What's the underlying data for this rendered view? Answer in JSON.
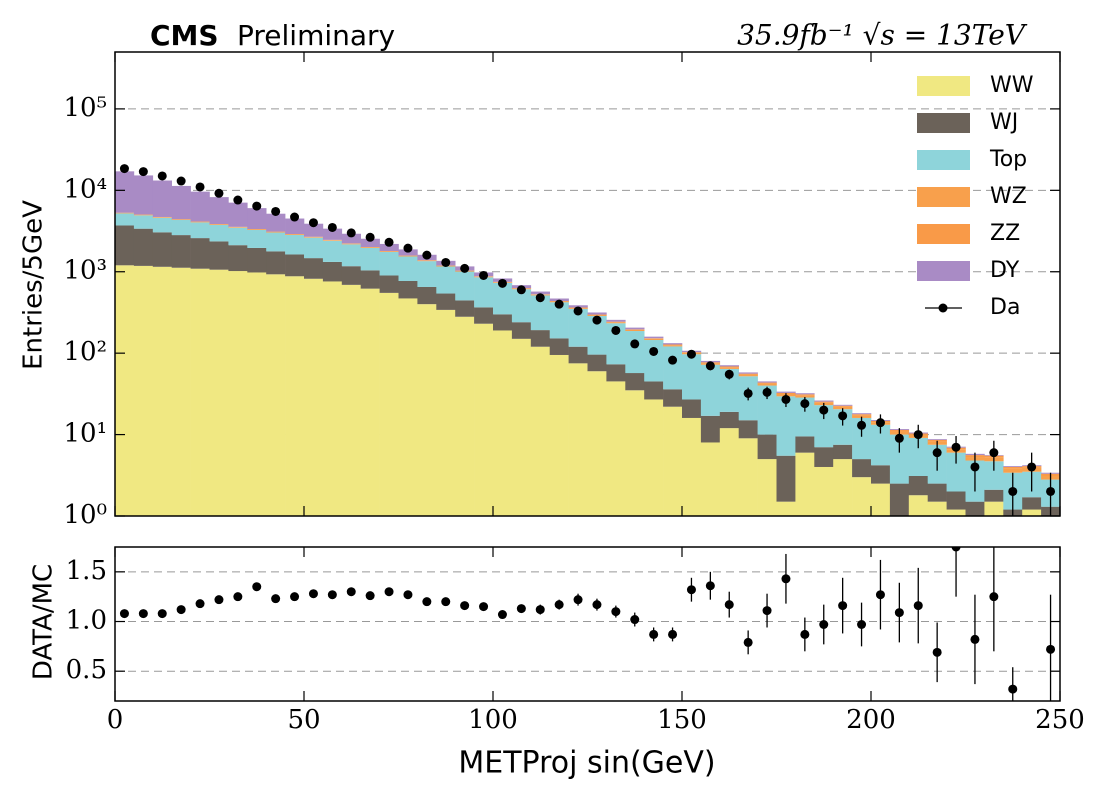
{
  "chart_data": [
    {
      "type": "stacked_histogram",
      "title": "CMS",
      "subtitle": "Preliminary",
      "annotation": "35.9fb⁻¹ √s = 13TeV",
      "ylabel": "Entries/5GeV",
      "log_scale": true,
      "grid": true,
      "legend": "upper right",
      "bins": [
        0,
        5,
        10,
        15,
        20,
        25,
        30,
        35,
        40,
        45,
        50,
        55,
        60,
        65,
        70,
        75,
        80,
        85,
        90,
        95,
        100,
        105,
        110,
        115,
        120,
        125,
        130,
        135,
        140,
        145,
        150,
        155,
        160,
        165,
        170,
        175,
        180,
        185,
        190,
        195,
        200,
        205,
        210,
        215,
        220,
        225,
        230,
        235,
        240,
        245,
        250
      ],
      "xlim": [
        0,
        250
      ],
      "xticks": [
        0,
        50,
        100,
        150,
        200,
        250
      ],
      "ylim": [
        1,
        500000
      ],
      "yticks": [
        {
          "value": 1,
          "label": "10⁰"
        },
        {
          "value": 10,
          "label": "10¹"
        },
        {
          "value": 100,
          "label": "10²"
        },
        {
          "value": 1000,
          "label": "10³"
        },
        {
          "value": 10000,
          "label": "10⁴"
        },
        {
          "value": 100000,
          "label": "10⁵"
        }
      ],
      "series": [
        {
          "name": "WW",
          "color": "#f0e882",
          "values": [
            1200,
            1180,
            1150,
            1120,
            1090,
            1060,
            1020,
            980,
            930,
            880,
            820,
            760,
            690,
            620,
            550,
            470,
            400,
            340,
            280,
            230,
            190,
            150,
            120,
            95,
            75,
            60,
            45,
            35,
            27,
            22,
            16,
            8,
            12,
            9,
            5,
            1.5,
            6,
            4,
            5,
            3,
            2.5,
            1,
            1.8,
            1.5,
            1.2,
            0.8,
            1.5,
            0.7,
            1.2,
            0.9
          ]
        },
        {
          "name": "WJ",
          "color": "#6b6259",
          "values": [
            2500,
            2200,
            1900,
            1700,
            1500,
            1300,
            1100,
            980,
            850,
            750,
            650,
            560,
            480,
            420,
            350,
            300,
            250,
            200,
            165,
            135,
            110,
            90,
            72,
            57,
            45,
            36,
            28,
            22,
            18,
            14,
            11,
            9,
            7,
            6,
            5,
            4,
            3.5,
            3,
            2.5,
            2,
            1.7,
            1.5,
            1.3,
            1,
            0.8,
            0.7,
            0.6,
            0.5,
            0.5,
            0.4
          ]
        },
        {
          "name": "Top",
          "color": "#8ed4da",
          "values": [
            1500,
            1550,
            1550,
            1500,
            1450,
            1400,
            1350,
            1300,
            1250,
            1200,
            1150,
            1080,
            1000,
            920,
            850,
            770,
            700,
            620,
            560,
            490,
            430,
            370,
            320,
            270,
            230,
            190,
            160,
            130,
            100,
            85,
            70,
            55,
            45,
            37,
            30,
            24,
            19,
            16,
            13,
            11,
            9,
            7.5,
            6,
            5,
            4,
            3.3,
            2.6,
            2.2,
            1.8,
            1.5
          ]
        },
        {
          "name": "WZ",
          "color": "#f8a04c",
          "values": [
            60,
            60,
            58,
            56,
            54,
            52,
            50,
            48,
            45,
            42,
            40,
            37,
            34,
            31,
            28,
            25,
            22,
            20,
            18,
            16,
            14,
            12,
            11,
            10,
            9,
            8,
            7,
            6,
            5,
            4.5,
            4,
            3.5,
            3,
            2.6,
            2.3,
            2,
            1.8,
            1.6,
            1.4,
            1.2,
            1,
            0.9,
            0.8,
            0.7,
            0.6,
            0.5,
            0.5,
            0.4,
            0.4,
            0.3
          ]
        },
        {
          "name": "ZZ",
          "color": "#f99a48",
          "values": [
            50,
            50,
            48,
            46,
            44,
            42,
            40,
            38,
            35,
            32,
            30,
            27,
            24,
            21,
            18,
            16,
            14,
            12,
            10,
            9,
            8,
            7,
            6,
            5,
            4.5,
            4,
            3.5,
            3,
            2.5,
            2.2,
            2,
            1.8,
            1.6,
            1.4,
            1.2,
            1,
            0.9,
            0.8,
            0.7,
            0.6,
            0.5,
            0.5,
            0.4,
            0.4,
            0.3,
            0.3,
            0.3,
            0.2,
            0.2,
            0.2
          ]
        },
        {
          "name": "DY",
          "color": "#a98bc5",
          "values": [
            11800,
            10200,
            8500,
            6900,
            5500,
            4400,
            3500,
            2700,
            2050,
            1600,
            1200,
            920,
            700,
            530,
            400,
            300,
            230,
            170,
            130,
            100,
            75,
            55,
            42,
            32,
            24,
            18,
            13,
            10,
            7,
            5,
            4,
            3,
            2.5,
            2,
            1.5,
            1.2,
            1,
            0.8,
            0.6,
            0.5,
            0.4,
            0.3,
            0.3,
            0.2,
            0.2,
            0.2,
            0.1,
            0.1,
            0.1,
            0.1
          ]
        }
      ],
      "data": {
        "name": "Da",
        "color": "#000000",
        "values": [
          18500,
          17000,
          15000,
          13000,
          11000,
          9200,
          7600,
          6400,
          5500,
          4700,
          4000,
          3500,
          3000,
          2650,
          2300,
          1950,
          1600,
          1300,
          1100,
          900,
          720,
          600,
          480,
          400,
          330,
          255,
          190,
          130,
          105,
          82,
          97,
          70,
          55,
          32,
          33,
          27,
          24,
          20,
          17,
          13,
          14,
          9,
          10,
          6,
          7,
          4,
          6,
          2,
          4,
          2
        ],
        "errors": [
          136,
          130,
          122,
          114,
          105,
          96,
          87,
          80,
          74,
          69,
          63,
          59,
          55,
          51,
          48,
          44,
          40,
          36,
          33,
          30,
          27,
          24.5,
          22,
          20,
          18,
          16,
          13.8,
          11.4,
          10.2,
          9.1,
          9.8,
          8.4,
          7.4,
          5.7,
          5.7,
          5.2,
          4.9,
          4.5,
          4.1,
          3.6,
          3.7,
          3,
          3.2,
          2.4,
          2.6,
          2,
          2.4,
          1.4,
          2,
          1.4
        ]
      }
    },
    {
      "type": "scatter",
      "ylabel": "DATA/MC",
      "xlabel": "METProj sin(GeV)",
      "grid": true,
      "color": "#000000",
      "x": [
        2.5,
        7.5,
        12.5,
        17.5,
        22.5,
        27.5,
        32.5,
        37.5,
        42.5,
        47.5,
        52.5,
        57.5,
        62.5,
        67.5,
        72.5,
        77.5,
        82.5,
        87.5,
        92.5,
        97.5,
        102.5,
        107.5,
        112.5,
        117.5,
        122.5,
        127.5,
        132.5,
        137.5,
        142.5,
        147.5,
        152.5,
        157.5,
        162.5,
        167.5,
        172.5,
        177.5,
        182.5,
        187.5,
        192.5,
        197.5,
        202.5,
        207.5,
        212.5,
        217.5,
        222.5,
        227.5,
        232.5,
        237.5,
        242.5,
        247.5
      ],
      "values": [
        1.08,
        1.08,
        1.08,
        1.12,
        1.18,
        1.22,
        1.25,
        1.35,
        1.23,
        1.25,
        1.28,
        1.27,
        1.3,
        1.26,
        1.3,
        1.27,
        1.2,
        1.2,
        1.16,
        1.15,
        1.07,
        1.13,
        1.12,
        1.17,
        1.22,
        1.17,
        1.1,
        1.02,
        0.87,
        0.87,
        1.32,
        1.36,
        1.17,
        0.79,
        1.11,
        1.43,
        0.87,
        0.97,
        1.16,
        0.97,
        1.27,
        1.09,
        1.16,
        0.69,
        1.75,
        0.82,
        1.25,
        0.32,
        null,
        0.72
      ],
      "errors": [
        0.02,
        0.02,
        0.02,
        0.02,
        0.02,
        0.02,
        0.02,
        0.03,
        0.03,
        0.03,
        0.03,
        0.03,
        0.03,
        0.03,
        0.03,
        0.03,
        0.03,
        0.03,
        0.03,
        0.04,
        0.04,
        0.04,
        0.05,
        0.05,
        0.06,
        0.06,
        0.06,
        0.07,
        0.07,
        0.07,
        0.12,
        0.14,
        0.13,
        0.12,
        0.17,
        0.25,
        0.17,
        0.2,
        0.28,
        0.22,
        0.35,
        0.3,
        0.38,
        0.3,
        0.5,
        0.45,
        0.55,
        0.22,
        null,
        0.55
      ],
      "xlim": [
        0,
        250
      ],
      "xticks": [
        0,
        50,
        100,
        150,
        200,
        250
      ],
      "ylim": [
        0.2,
        1.75
      ],
      "yticks": [
        0.5,
        {
          "value": 1,
          "label": "1.0"
        },
        1.5
      ]
    }
  ]
}
